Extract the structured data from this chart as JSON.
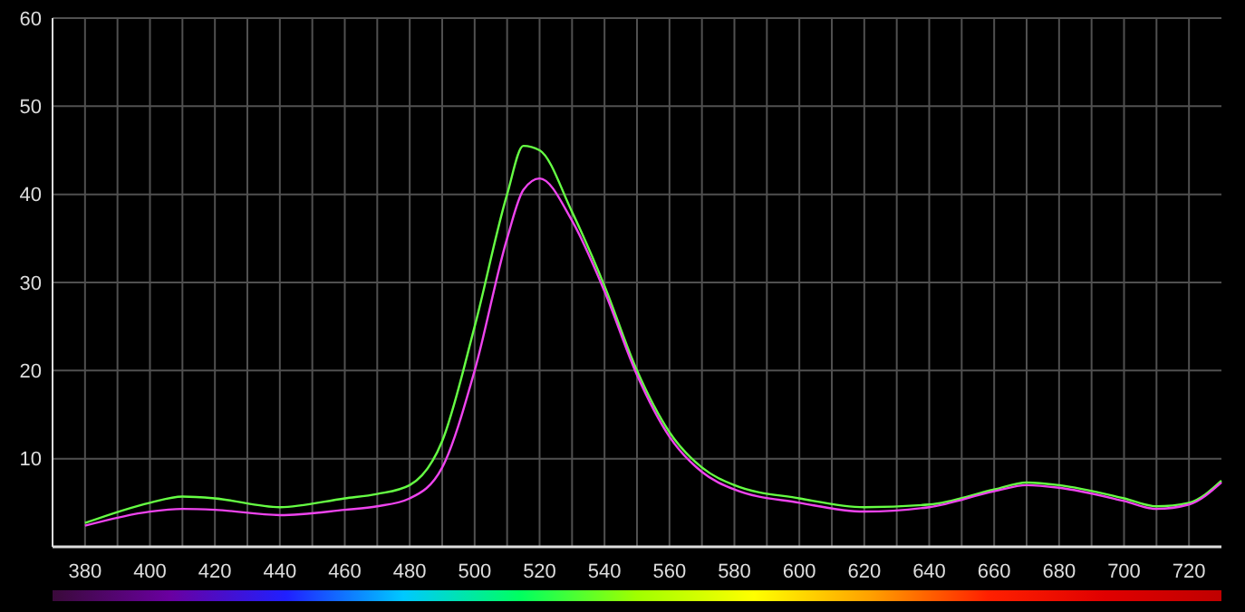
{
  "chart_data": {
    "type": "line",
    "x": [
      380,
      400,
      410,
      420,
      440,
      460,
      470,
      480,
      490,
      500,
      510,
      515,
      520,
      530,
      540,
      550,
      560,
      570,
      580,
      600,
      620,
      640,
      660,
      670,
      680,
      700,
      710,
      720,
      730
    ],
    "series": [
      {
        "color": "#66ff44",
        "values": [
          2.7,
          5,
          5.7,
          5.5,
          4.5,
          5.5,
          6,
          7,
          12,
          25,
          40,
          45.5,
          45,
          38,
          29.6,
          20,
          13,
          9,
          7,
          5.5,
          4.5,
          4.8,
          6.5,
          7.3,
          7,
          5.5,
          4.6,
          5,
          7.5
        ]
      },
      {
        "color": "#ee44ee",
        "values": [
          2.4,
          4,
          4.3,
          4.2,
          3.6,
          4.2,
          4.6,
          5.5,
          9,
          20,
          35,
          40.5,
          41.8,
          37,
          29,
          19.5,
          12.5,
          8.5,
          6.5,
          5,
          4,
          4.5,
          6.3,
          7,
          6.7,
          5.2,
          4.3,
          4.8,
          7.3
        ]
      }
    ],
    "xlim": [
      370,
      730
    ],
    "xticks": [
      380,
      {
        "value": 390,
        "label": null
      },
      400,
      {
        "value": 410,
        "label": null
      },
      420,
      {
        "value": 430,
        "label": null
      },
      440,
      {
        "value": 450,
        "label": null
      },
      460,
      {
        "value": 470,
        "label": null
      },
      480,
      {
        "value": 490,
        "label": null
      },
      500,
      {
        "value": 510,
        "label": null
      },
      520,
      {
        "value": 530,
        "label": null
      },
      540,
      {
        "value": 550,
        "label": null
      },
      560,
      {
        "value": 570,
        "label": null
      },
      580,
      {
        "value": 590,
        "label": null
      },
      600,
      {
        "value": 610,
        "label": null
      },
      620,
      {
        "value": 630,
        "label": null
      },
      640,
      {
        "value": 650,
        "label": null
      },
      660,
      {
        "value": 670,
        "label": null
      },
      680,
      {
        "value": 690,
        "label": null
      },
      700,
      {
        "value": 710,
        "label": null
      },
      720
    ],
    "ylim": [
      0,
      60
    ],
    "yticks": [
      10,
      20,
      30,
      40,
      50,
      60
    ],
    "grid": true,
    "marker": "none",
    "line_style": "solid"
  }
}
